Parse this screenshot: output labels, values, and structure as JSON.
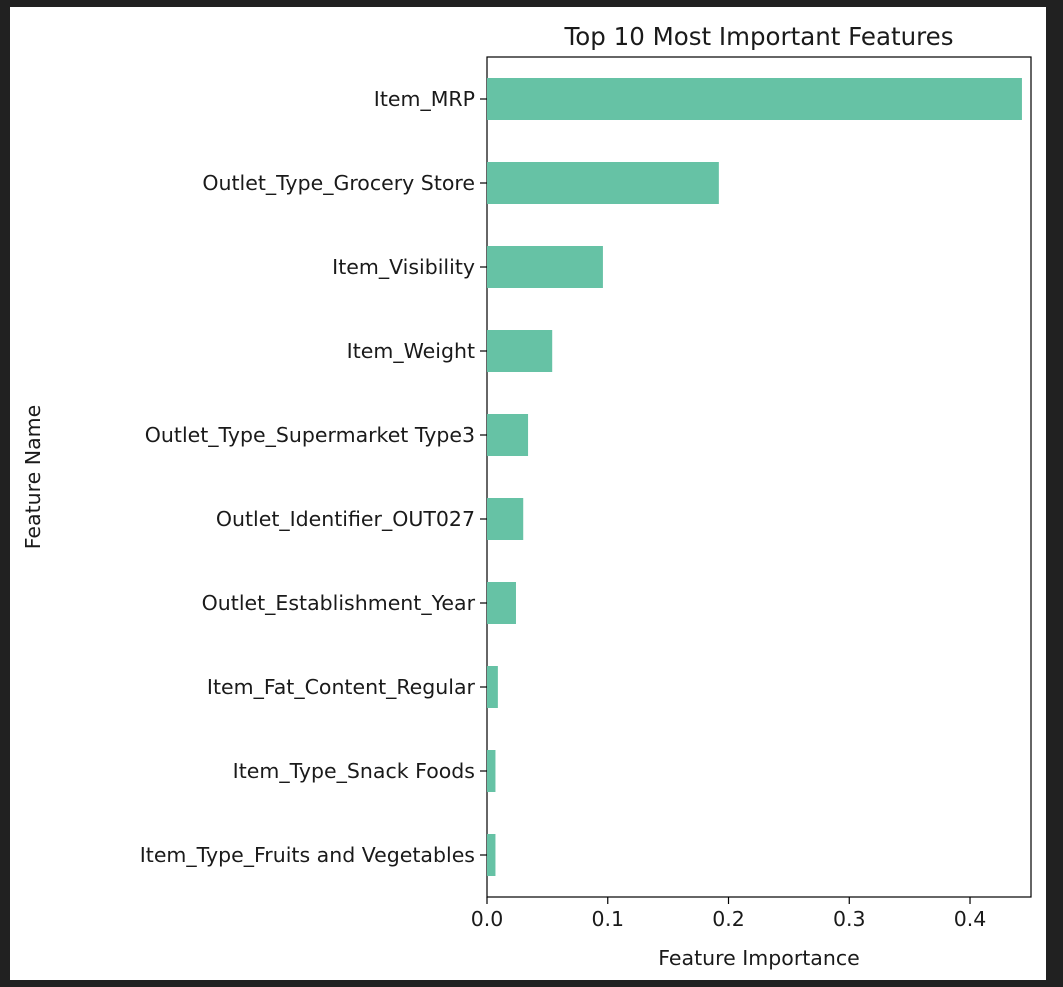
{
  "chart_data": {
    "type": "bar",
    "orientation": "horizontal",
    "title": "Top 10 Most Important Features",
    "xlabel": "Feature Importance",
    "ylabel": "Feature Name",
    "categories": [
      "Item_MRP",
      "Outlet_Type_Grocery Store",
      "Item_Visibility",
      "Item_Weight",
      "Outlet_Type_Supermarket Type3",
      "Outlet_Identifier_OUT027",
      "Outlet_Establishment_Year",
      "Item_Fat_Content_Regular",
      "Item_Type_Snack Foods",
      "Item_Type_Fruits and Vegetables"
    ],
    "values": [
      0.443,
      0.192,
      0.096,
      0.054,
      0.034,
      0.03,
      0.024,
      0.009,
      0.007,
      0.007
    ],
    "xlim": [
      0,
      0.4505
    ],
    "xticks": [
      0.0,
      0.1,
      0.2,
      0.3,
      0.4
    ],
    "xtick_labels": [
      "0.0",
      "0.1",
      "0.2",
      "0.3",
      "0.4"
    ],
    "bar_color": "#66c2a5",
    "grid": false,
    "legend": "none"
  }
}
